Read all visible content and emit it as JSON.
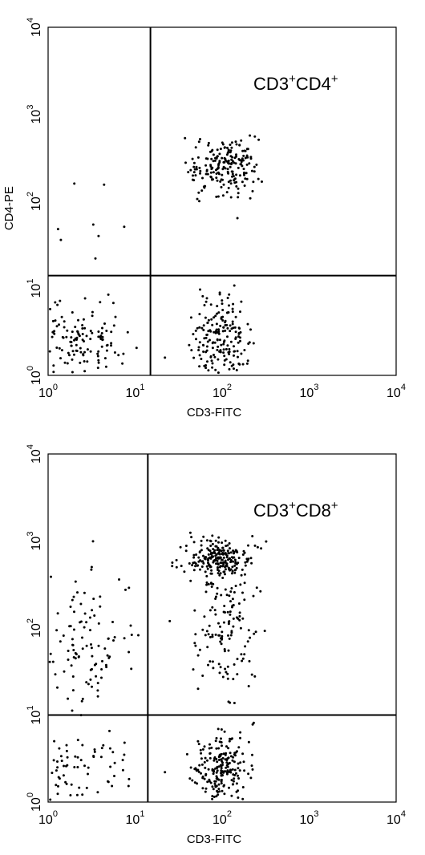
{
  "chart_data": [
    {
      "type": "scatter",
      "title": "",
      "xlabel": "CD3-FITC",
      "ylabel": "CD4-PE",
      "xscale": "log",
      "yscale": "log",
      "xlim": [
        1,
        10000
      ],
      "ylim": [
        1,
        10000
      ],
      "x_ticks": [
        "10",
        "10",
        "10",
        "10",
        "10"
      ],
      "x_tick_exponents": [
        "0",
        "1",
        "2",
        "3",
        "4"
      ],
      "y_ticks": [
        "10",
        "10",
        "10",
        "10",
        "10"
      ],
      "y_tick_exponents": [
        "0",
        "1",
        "2",
        "3",
        "4"
      ],
      "gates": {
        "x": 15,
        "y": 14
      },
      "annotation": {
        "parts": [
          "CD3",
          "+",
          "CD4",
          "+"
        ],
        "position": "top-right"
      },
      "grid": false,
      "point_color": "#000000",
      "clusters": [
        {
          "x": 105,
          "y": 260,
          "sx": 0.2,
          "sy": 0.16,
          "n": 200
        },
        {
          "x": 95,
          "y": 2.6,
          "sx": 0.17,
          "sy": 0.22,
          "n": 190
        },
        {
          "x": 2.3,
          "y": 2.4,
          "sx": 0.28,
          "sy": 0.2,
          "n": 140
        }
      ],
      "points": [
        {
          "x": 1.3,
          "y": 48
        },
        {
          "x": 1.4,
          "y": 36
        },
        {
          "x": 2.0,
          "y": 160
        },
        {
          "x": 3.3,
          "y": 54
        },
        {
          "x": 3.8,
          "y": 40
        },
        {
          "x": 4.4,
          "y": 155
        },
        {
          "x": 3.5,
          "y": 22
        },
        {
          "x": 7.5,
          "y": 51
        },
        {
          "x": 150,
          "y": 64
        },
        {
          "x": 22,
          "y": 1.6
        }
      ]
    },
    {
      "type": "scatter",
      "title": "",
      "xlabel": "CD3-FITC",
      "ylabel": "",
      "xscale": "log",
      "yscale": "log",
      "xlim": [
        1,
        10000
      ],
      "ylim": [
        1,
        10000
      ],
      "x_ticks": [
        "10",
        "10",
        "10",
        "10",
        "10"
      ],
      "x_tick_exponents": [
        "0",
        "1",
        "2",
        "3",
        "4"
      ],
      "y_ticks": [
        "10",
        "10",
        "10",
        "10",
        "10"
      ],
      "y_tick_exponents": [
        "0",
        "1",
        "2",
        "3",
        "4"
      ],
      "gates": {
        "x": 14,
        "y": 10
      },
      "annotation": {
        "parts": [
          "CD3",
          "+",
          "CD8",
          "+"
        ],
        "position": "top-right"
      },
      "grid": false,
      "point_color": "#000000",
      "clusters": [
        {
          "x": 95,
          "y": 630,
          "sx": 0.18,
          "sy": 0.12,
          "n": 230
        },
        {
          "x": 110,
          "y": 90,
          "sx": 0.17,
          "sy": 0.38,
          "n": 130
        },
        {
          "x": 100,
          "y": 2.4,
          "sx": 0.16,
          "sy": 0.2,
          "n": 210
        },
        {
          "x": 2.6,
          "y": 70,
          "sx": 0.3,
          "sy": 0.4,
          "n": 110
        },
        {
          "x": 2.2,
          "y": 2.0,
          "sx": 0.28,
          "sy": 0.22,
          "n": 75
        }
      ],
      "points": [
        {
          "x": 22,
          "y": 2.2
        },
        {
          "x": 7.5,
          "y": 3.5
        },
        {
          "x": 30,
          "y": 500
        },
        {
          "x": 25,
          "y": 120
        }
      ]
    }
  ]
}
